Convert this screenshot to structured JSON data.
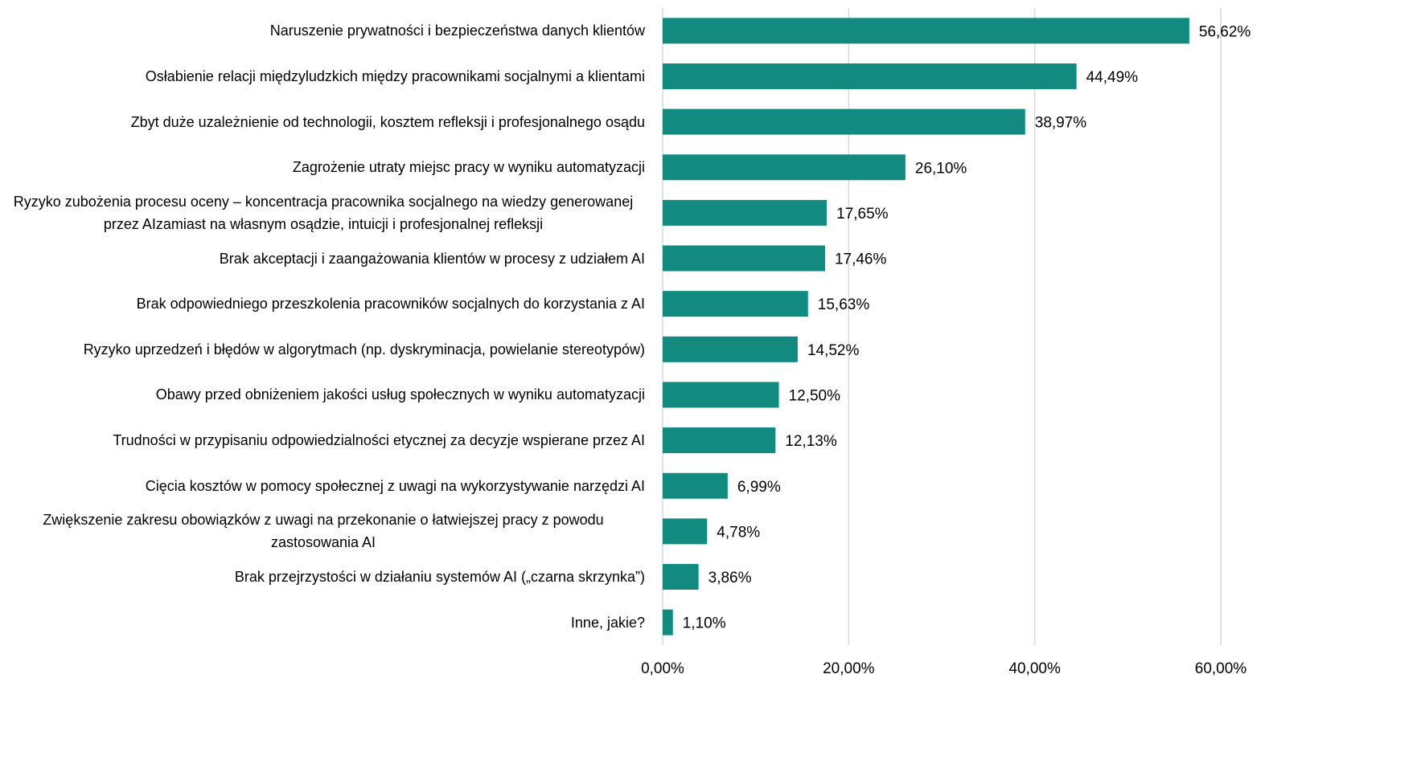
{
  "chart_data": {
    "type": "barh",
    "categories": [
      "Naruszenie prywatności i bezpieczeństwa danych klientów",
      "Osłabienie relacji międzyludzkich między pracownikami socjalnymi a klientami",
      "Zbyt duże uzależnienie od technologii, kosztem refleksji i profesjonalnego osądu",
      "Zagrożenie utraty miejsc pracy w wyniku automatyzacji",
      "Ryzyko zubożenia procesu oceny – koncentracja pracownika socjalnego na wiedzy generowanej przez AIzamiast na własnym osądzie, intuicji i profesjonalnej refleksji",
      "Brak akceptacji i zaangażowania klientów w procesy z udziałem AI",
      "Brak odpowiedniego przeszkolenia pracowników socjalnych do korzystania z AI",
      "Ryzyko uprzedzeń i błędów w algorytmach (np. dyskryminacja, powielanie stereotypów)",
      "Obawy przed obniżeniem jakości usług społecznych w wyniku automatyzacji",
      "Trudności w przypisaniu odpowiedzialności etycznej za decyzje wspierane przez AI",
      "Cięcia kosztów w pomocy społecznej z uwagi na wykorzystywanie narzędzi AI",
      "Zwiększenie zakresu obowiązków z uwagi na przekonanie o łatwiejszej pracy z powodu zastosowania AI",
      "Brak przejrzystości w działaniu systemów AI („czarna skrzynka”)",
      "Inne, jakie?"
    ],
    "values": [
      56.62,
      44.49,
      38.97,
      26.1,
      17.65,
      17.46,
      15.63,
      14.52,
      12.5,
      12.13,
      6.99,
      4.78,
      3.86,
      1.1
    ],
    "value_labels": [
      "56,62%",
      "44,49%",
      "38,97%",
      "26,10%",
      "17,65%",
      "17,46%",
      "15,63%",
      "14,52%",
      "12,50%",
      "12,13%",
      "6,99%",
      "4,78%",
      "3,86%",
      "1,10%"
    ],
    "color": "#138a80",
    "xlim": [
      0,
      60
    ],
    "xticks": [
      {
        "value": 0,
        "label": "0,00%"
      },
      {
        "value": 20,
        "label": "20,00%"
      },
      {
        "value": 40,
        "label": "40,00%"
      },
      {
        "value": 60,
        "label": "60,00%"
      }
    ],
    "grid": true
  }
}
